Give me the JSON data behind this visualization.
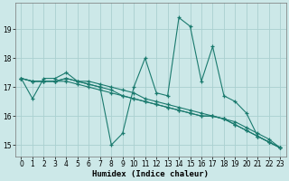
{
  "xlabel": "Humidex (Indice chaleur)",
  "background_color": "#cce8e8",
  "line_color": "#1a7a6e",
  "grid_color": "#aad0d0",
  "ylim": [
    14.6,
    19.9
  ],
  "xlim": [
    -0.5,
    23.5
  ],
  "yticks": [
    15,
    16,
    17,
    18,
    19
  ],
  "xticks": [
    0,
    1,
    2,
    3,
    4,
    5,
    6,
    7,
    8,
    9,
    10,
    11,
    12,
    13,
    14,
    15,
    16,
    17,
    18,
    19,
    20,
    21,
    22,
    23
  ],
  "main_y": [
    17.3,
    16.6,
    17.3,
    17.3,
    17.5,
    17.2,
    17.1,
    17.0,
    15.0,
    15.4,
    17.0,
    18.0,
    16.8,
    16.7,
    19.4,
    19.1,
    17.2,
    18.4,
    16.7,
    16.5,
    16.1,
    15.3,
    15.1,
    14.9
  ],
  "trend1_y": [
    17.3,
    17.2,
    17.2,
    17.2,
    17.2,
    17.1,
    17.0,
    16.9,
    16.8,
    16.7,
    16.6,
    16.5,
    16.4,
    16.3,
    16.2,
    16.1,
    16.0,
    16.0,
    15.9,
    15.8,
    15.6,
    15.4,
    15.2,
    14.9
  ],
  "trend2_y": [
    17.3,
    17.2,
    17.2,
    17.2,
    17.3,
    17.2,
    17.1,
    17.0,
    16.9,
    16.7,
    16.6,
    16.5,
    16.4,
    16.3,
    16.2,
    16.1,
    16.0,
    16.0,
    15.9,
    15.7,
    15.5,
    15.3,
    15.1,
    14.9
  ],
  "trend3_y": [
    17.3,
    17.2,
    17.2,
    17.2,
    17.3,
    17.2,
    17.2,
    17.1,
    17.0,
    16.9,
    16.8,
    16.6,
    16.5,
    16.4,
    16.3,
    16.2,
    16.1,
    16.0,
    15.9,
    15.7,
    15.5,
    15.3,
    15.1,
    14.9
  ],
  "tick_fontsize": 5.5,
  "xlabel_fontsize": 6.5
}
